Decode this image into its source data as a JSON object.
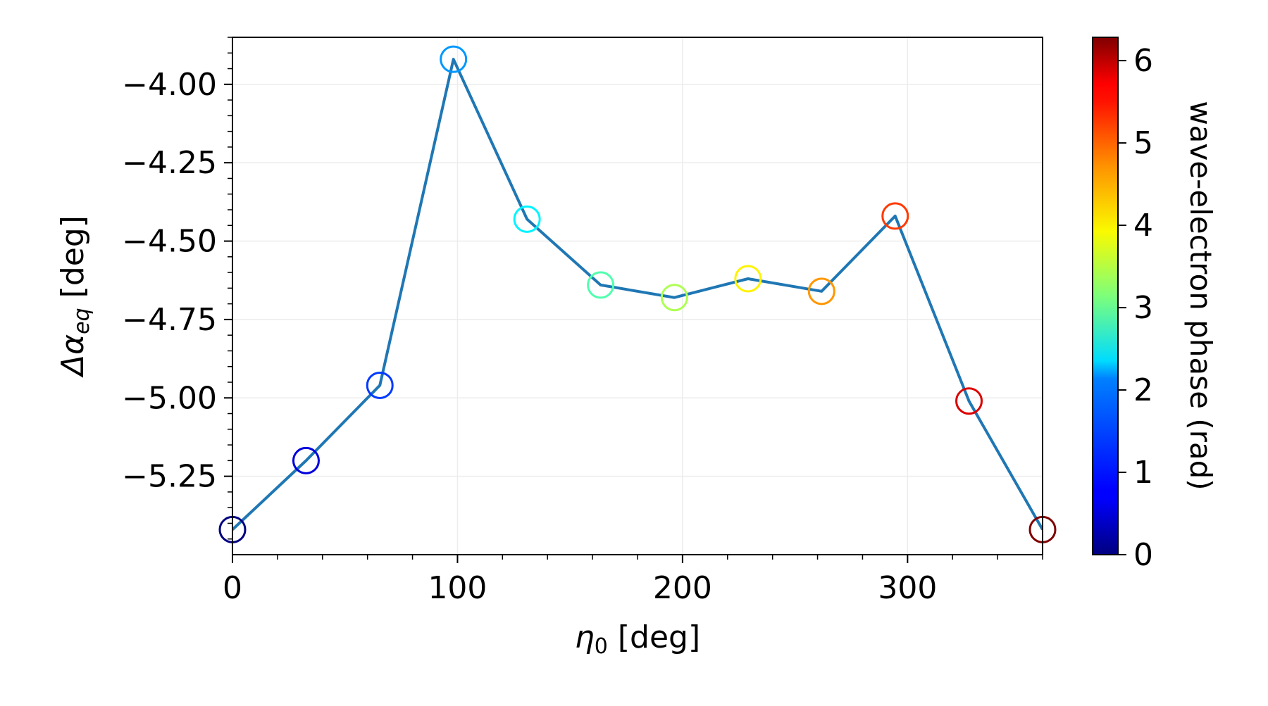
{
  "chart_data": {
    "type": "line",
    "xlabel": {
      "symbol": "η",
      "sub": "0",
      "unit": " [deg]"
    },
    "ylabel": {
      "prefix": "Δα",
      "sub": "eq",
      "unit": " [deg]"
    },
    "xlim": [
      0,
      360
    ],
    "ylim": [
      -5.5,
      -3.85
    ],
    "x_ticks": [
      0,
      100,
      200,
      300
    ],
    "x_tick_labels": [
      "0",
      "100",
      "200",
      "300"
    ],
    "y_ticks": [
      -5.25,
      -5.0,
      -4.75,
      -4.5,
      -4.25,
      -4.0
    ],
    "y_tick_labels": [
      "−5.25",
      "−5.00",
      "−4.75",
      "−4.50",
      "−4.25",
      "−4.00"
    ],
    "grid": true,
    "line_color": "#1f77b4",
    "series": [
      {
        "x": [
          0,
          32.7,
          65.5,
          98.2,
          130.9,
          163.6,
          196.4,
          229.1,
          261.8,
          294.5,
          327.3,
          360
        ],
        "values": [
          -5.42,
          -5.2,
          -4.96,
          -3.92,
          -4.43,
          -4.64,
          -4.68,
          -4.62,
          -4.66,
          -4.42,
          -5.01,
          -5.42
        ],
        "phase": [
          0.0,
          0.571,
          1.142,
          1.714,
          2.285,
          2.856,
          3.427,
          3.998,
          4.57,
          5.141,
          5.712,
          6.283
        ],
        "marker": "open-circle"
      }
    ],
    "colorbar": {
      "label": "wave-electron phase (rad)",
      "min": 0,
      "max": 6.283,
      "ticks": [
        0,
        1,
        2,
        3,
        4,
        5,
        6
      ],
      "tick_labels": [
        "0",
        "1",
        "2",
        "3",
        "4",
        "5",
        "6"
      ],
      "colormap": "jet"
    }
  }
}
